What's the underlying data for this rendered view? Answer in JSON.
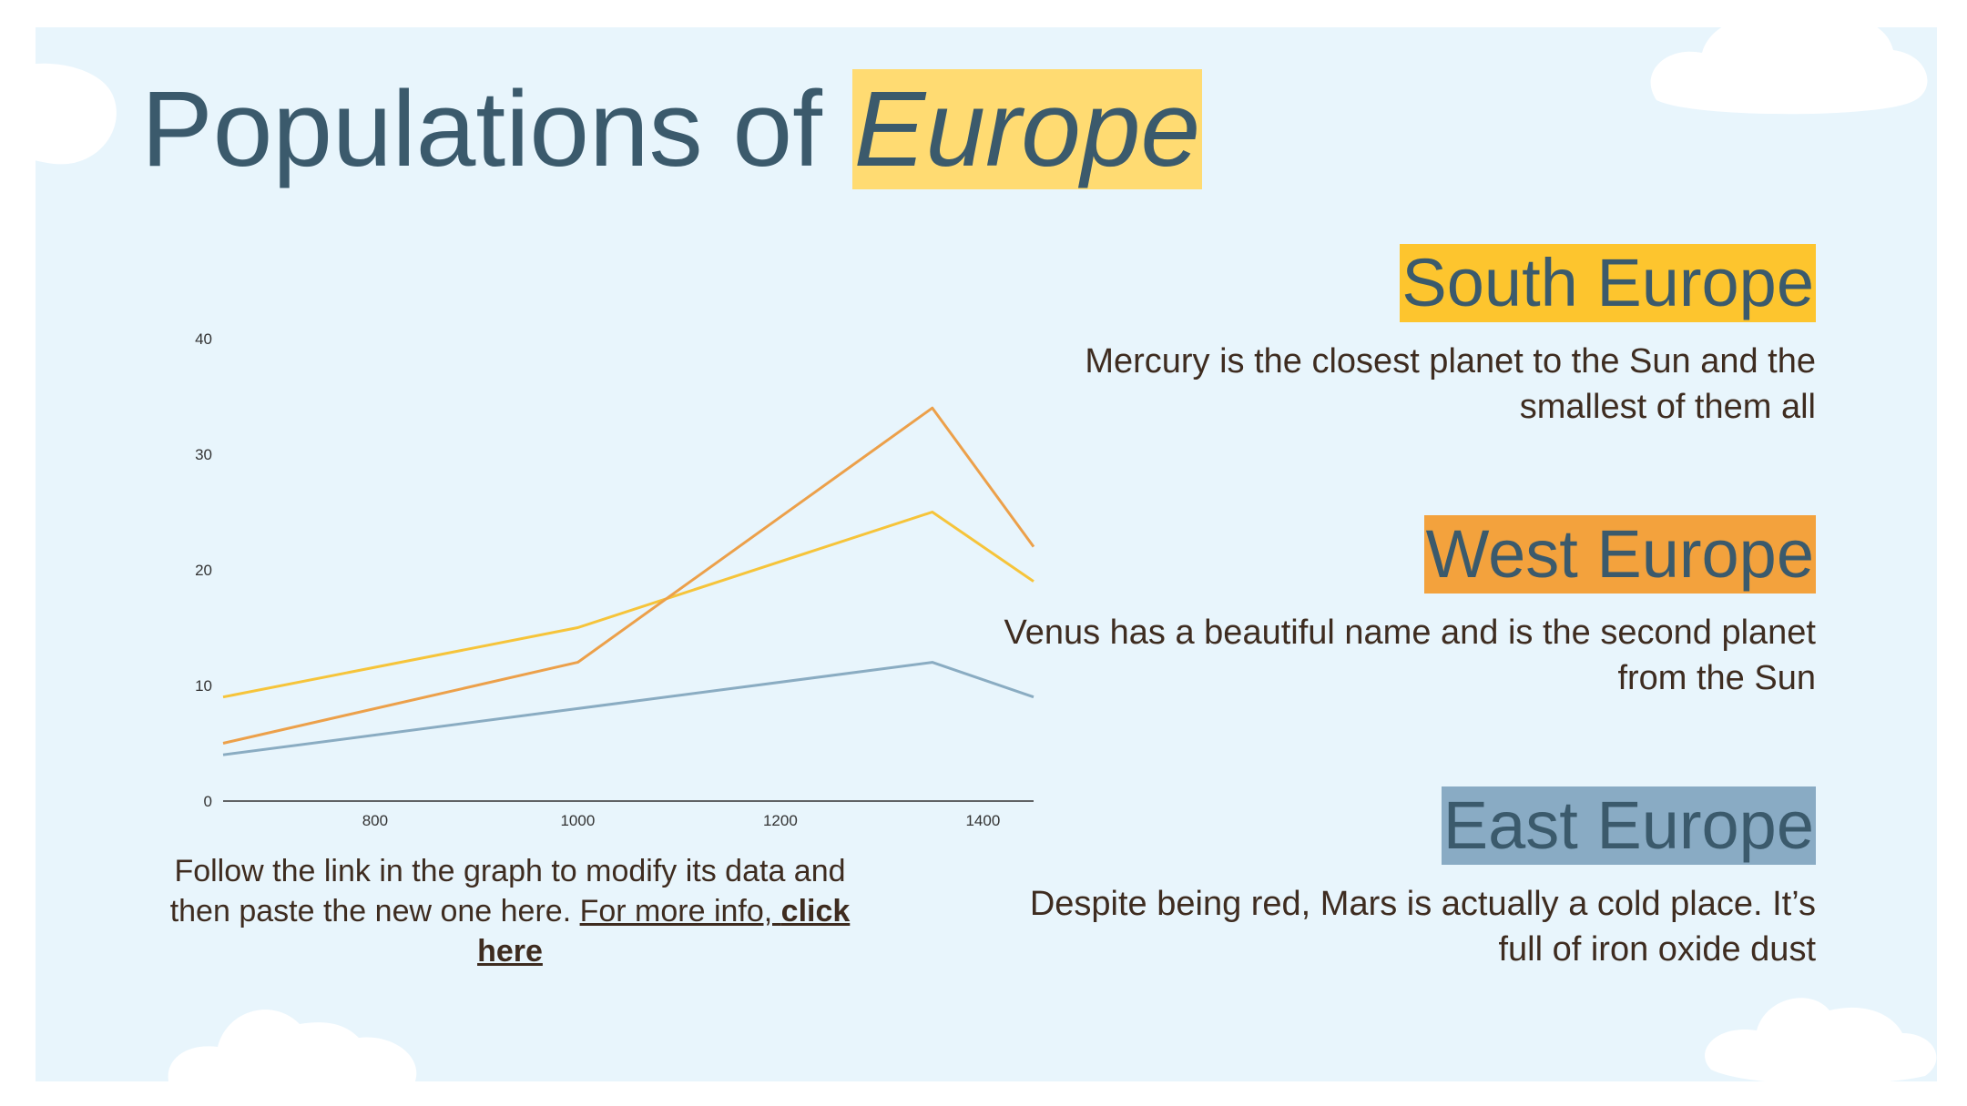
{
  "title": {
    "prefix": "Populations of ",
    "highlight": "Europe"
  },
  "caption": {
    "text": "Follow the link in the graph to modify its data and then paste the new one here. ",
    "link_prefix": "For more info, ",
    "link_bold": "click here"
  },
  "regions": [
    {
      "name": "South Europe",
      "description": "Mercury is the closest planet to the Sun and the smallest of them all",
      "color": "#fdc52e"
    },
    {
      "name": "West Europe",
      "description": "Venus has a beautiful name and is the second planet from the Sun",
      "color": "#f3a23d"
    },
    {
      "name": "East Europe",
      "description": "Despite being red, Mars is actually a cold place. It’s full of iron oxide dust",
      "color": "#89abc4"
    }
  ],
  "colors": {
    "background": "#e8f5fc",
    "title": "#3b5a6c",
    "title_highlight": "#ffdb72",
    "body_text": "#3e2c20"
  },
  "chart_data": {
    "type": "line",
    "x": [
      650,
      1000,
      1350,
      1450
    ],
    "series": [
      {
        "values": [
          9,
          15,
          25,
          19
        ],
        "color": "#f6c43a"
      },
      {
        "values": [
          5,
          12,
          34,
          22
        ],
        "color": "#eca04a"
      },
      {
        "values": [
          4,
          8,
          12,
          9
        ],
        "color": "#8aacc2"
      }
    ],
    "xticks": [
      800,
      1000,
      1200,
      1400
    ],
    "yticks": [
      0,
      10,
      20,
      30,
      40
    ],
    "xlim": [
      650,
      1450
    ],
    "ylim": [
      0,
      40
    ],
    "grid": false,
    "legend": false
  }
}
